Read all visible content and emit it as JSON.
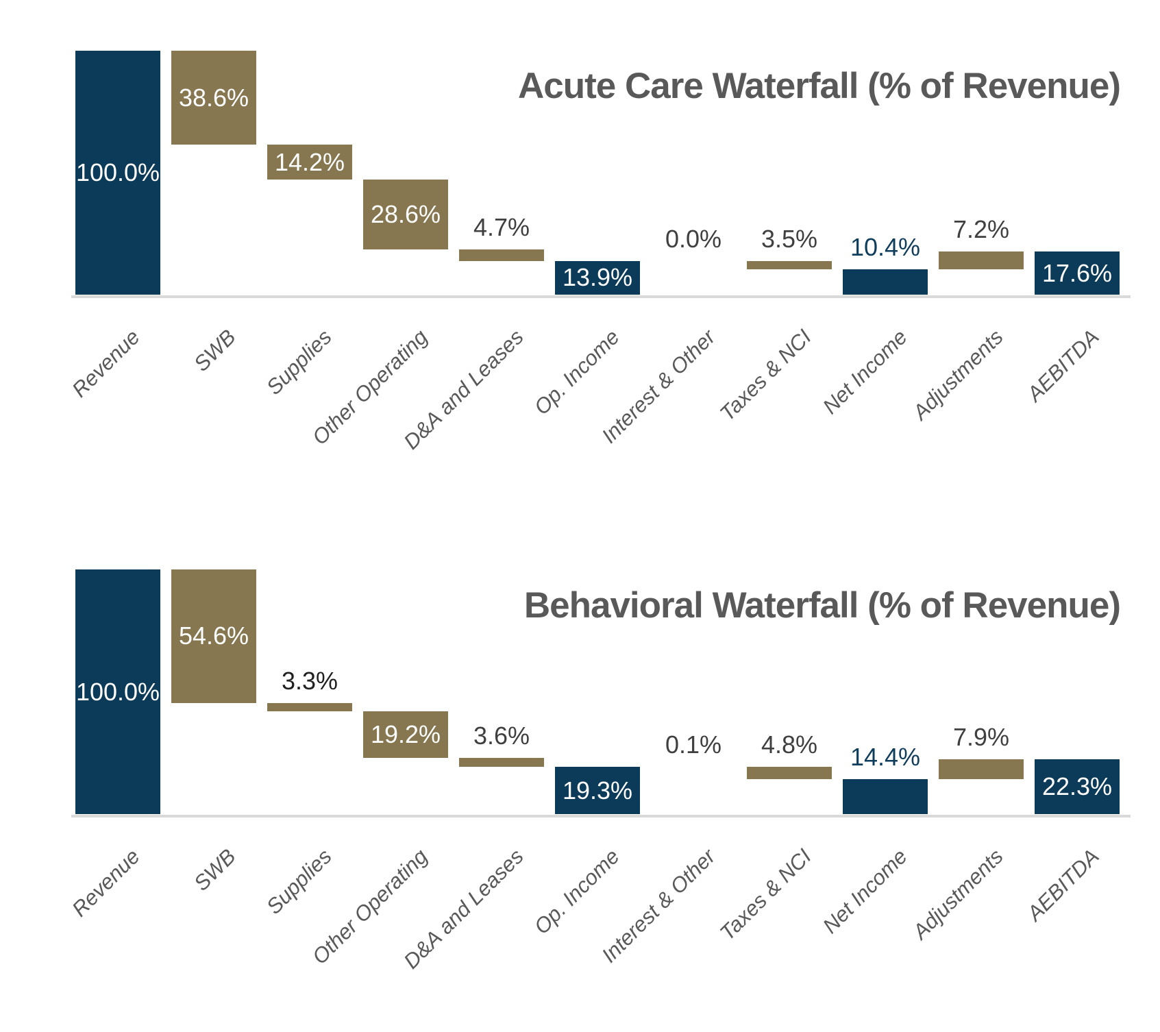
{
  "page": {
    "background": "#FFFFFF"
  },
  "palette": {
    "bar_navy": "#0B3B58",
    "bar_gold": "#867750",
    "label_white": "#FFFFFF",
    "label_gray": "#3F3F3F",
    "label_navy": "#0F3D5C",
    "label_dark": "#1F1F1F",
    "title_gray": "#595959",
    "category_gray": "#595959",
    "axis_line": "#D9D9D9"
  },
  "chart_data": [
    {
      "type": "bar",
      "subtype": "waterfall",
      "title": "Acute Care Waterfall (% of Revenue)",
      "ylim": [
        0,
        100
      ],
      "grid": false,
      "legend": false,
      "categories": [
        "Revenue",
        "SWB",
        "Supplies",
        "Other Operating",
        "D&A and Leases",
        "Op. Income",
        "Interest & Other",
        "Taxes & NCI",
        "Net Income",
        "Adjustments",
        "AEBITDA"
      ],
      "series": [
        {
          "name": "% of Revenue",
          "values": [
            100.0,
            -38.6,
            -14.2,
            -28.6,
            -4.7,
            13.9,
            0.0,
            -3.5,
            10.4,
            7.2,
            17.6
          ]
        }
      ],
      "bars": [
        {
          "category": "Revenue",
          "label": "100.0%",
          "from": 0,
          "to": 100,
          "role": "total",
          "color": "navy",
          "label_placement": "inside",
          "label_color": "white"
        },
        {
          "category": "SWB",
          "label": "38.6%",
          "from": 61.4,
          "to": 100,
          "role": "decrease",
          "color": "gold",
          "label_placement": "inside",
          "label_color": "white"
        },
        {
          "category": "Supplies",
          "label": "14.2%",
          "from": 47.2,
          "to": 61.4,
          "role": "decrease",
          "color": "gold",
          "label_placement": "inside",
          "label_color": "white"
        },
        {
          "category": "Other Operating",
          "label": "28.6%",
          "from": 18.6,
          "to": 47.2,
          "role": "decrease",
          "color": "gold",
          "label_placement": "inside",
          "label_color": "white"
        },
        {
          "category": "D&A and Leases",
          "label": "4.7%",
          "from": 13.9,
          "to": 18.6,
          "role": "decrease",
          "color": "gold",
          "label_placement": "outside",
          "label_color": "gray"
        },
        {
          "category": "Op. Income",
          "label": "13.9%",
          "from": 0,
          "to": 13.9,
          "role": "total",
          "color": "navy",
          "label_placement": "inside",
          "label_color": "white"
        },
        {
          "category": "Interest & Other",
          "label": "0.0%",
          "from": 13.9,
          "to": 13.9,
          "role": "decrease",
          "color": "gold",
          "label_placement": "outside",
          "label_color": "gray"
        },
        {
          "category": "Taxes & NCI",
          "label": "3.5%",
          "from": 10.4,
          "to": 13.9,
          "role": "decrease",
          "color": "gold",
          "label_placement": "outside",
          "label_color": "gray"
        },
        {
          "category": "Net Income",
          "label": "10.4%",
          "from": 0,
          "to": 10.4,
          "role": "total",
          "color": "navy",
          "label_placement": "outside",
          "label_color": "navy"
        },
        {
          "category": "Adjustments",
          "label": "7.2%",
          "from": 10.4,
          "to": 17.6,
          "role": "increase",
          "color": "gold",
          "label_placement": "outside",
          "label_color": "gray"
        },
        {
          "category": "AEBITDA",
          "label": "17.6%",
          "from": 0,
          "to": 17.6,
          "role": "total",
          "color": "navy",
          "label_placement": "inside",
          "label_color": "white"
        }
      ]
    },
    {
      "type": "bar",
      "subtype": "waterfall",
      "title": "Behavioral Waterfall (% of Revenue)",
      "ylim": [
        0,
        100
      ],
      "grid": false,
      "legend": false,
      "categories": [
        "Revenue",
        "SWB",
        "Supplies",
        "Other Operating",
        "D&A and Leases",
        "Op. Income",
        "Interest & Other",
        "Taxes & NCI",
        "Net Income",
        "Adjustments",
        "AEBITDA"
      ],
      "series": [
        {
          "name": "% of Revenue",
          "values": [
            100.0,
            -54.6,
            -3.3,
            -19.2,
            -3.6,
            19.3,
            -0.1,
            -4.8,
            14.4,
            7.9,
            22.3
          ]
        }
      ],
      "bars": [
        {
          "category": "Revenue",
          "label": "100.0%",
          "from": 0,
          "to": 100,
          "role": "total",
          "color": "navy",
          "label_placement": "inside",
          "label_color": "white"
        },
        {
          "category": "SWB",
          "label": "54.6%",
          "from": 45.4,
          "to": 100,
          "role": "decrease",
          "color": "gold",
          "label_placement": "inside",
          "label_color": "white"
        },
        {
          "category": "Supplies",
          "label": "3.3%",
          "from": 42.1,
          "to": 45.4,
          "role": "decrease",
          "color": "gold",
          "label_placement": "outside",
          "label_color": "dark"
        },
        {
          "category": "Other Operating",
          "label": "19.2%",
          "from": 22.9,
          "to": 42.1,
          "role": "decrease",
          "color": "gold",
          "label_placement": "inside",
          "label_color": "white"
        },
        {
          "category": "D&A and Leases",
          "label": "3.6%",
          "from": 19.3,
          "to": 22.9,
          "role": "decrease",
          "color": "gold",
          "label_placement": "outside",
          "label_color": "gray"
        },
        {
          "category": "Op. Income",
          "label": "19.3%",
          "from": 0,
          "to": 19.3,
          "role": "total",
          "color": "navy",
          "label_placement": "inside",
          "label_color": "white"
        },
        {
          "category": "Interest & Other",
          "label": "0.1%",
          "from": 19.2,
          "to": 19.3,
          "role": "decrease",
          "color": "gold",
          "label_placement": "outside",
          "label_color": "gray"
        },
        {
          "category": "Taxes & NCI",
          "label": "4.8%",
          "from": 14.4,
          "to": 19.2,
          "role": "decrease",
          "color": "gold",
          "label_placement": "outside",
          "label_color": "gray"
        },
        {
          "category": "Net Income",
          "label": "14.4%",
          "from": 0,
          "to": 14.4,
          "role": "total",
          "color": "navy",
          "label_placement": "outside",
          "label_color": "navy"
        },
        {
          "category": "Adjustments",
          "label": "7.9%",
          "from": 14.4,
          "to": 22.3,
          "role": "increase",
          "color": "gold",
          "label_placement": "outside",
          "label_color": "gray"
        },
        {
          "category": "AEBITDA",
          "label": "22.3%",
          "from": 0,
          "to": 22.3,
          "role": "total",
          "color": "navy",
          "label_placement": "inside",
          "label_color": "white"
        }
      ]
    }
  ]
}
